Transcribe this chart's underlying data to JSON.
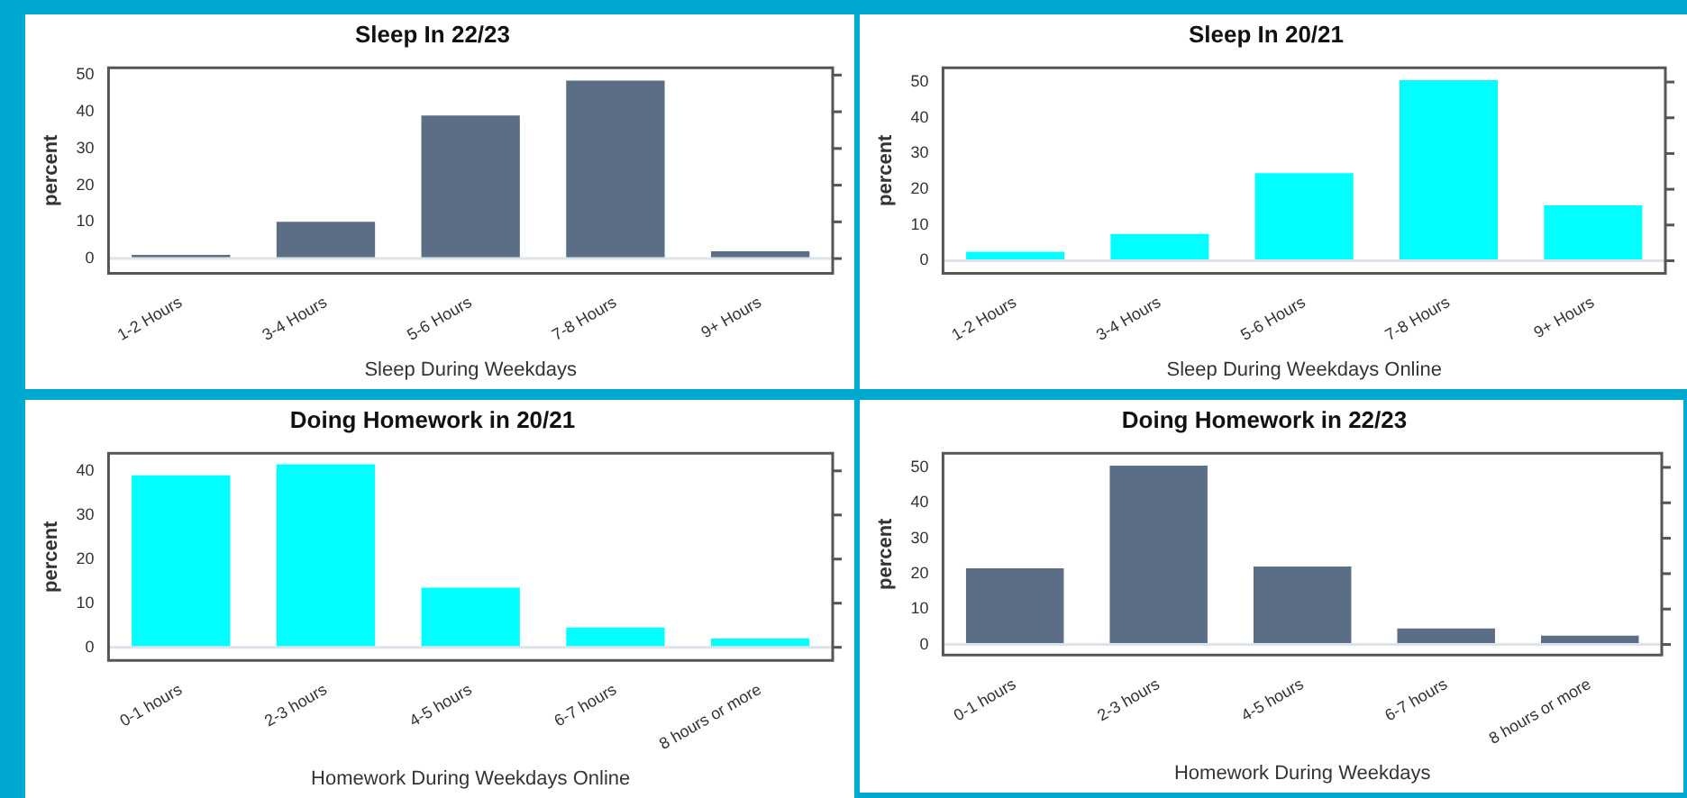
{
  "chart_data": [
    {
      "type": "bar",
      "title": "Sleep In 22/23",
      "xlabel": "Sleep During Weekdays",
      "ylabel": "percent",
      "categories": [
        "1-2 Hours",
        "3-4 Hours",
        "5-6 Hours",
        "7-8 Hours",
        "9+ Hours"
      ],
      "values": [
        1,
        10,
        39,
        48.5,
        2
      ],
      "color": "#5b6e86",
      "ylim": [
        -4,
        52
      ],
      "yticks": [
        0,
        10,
        20,
        30,
        40,
        50
      ],
      "ref_lines": [
        {
          "axis": "y",
          "value": 0,
          "color": "#dde3ea"
        }
      ]
    },
    {
      "type": "bar",
      "title": "Sleep In 20/21",
      "xlabel": "Sleep During Weekdays Online",
      "ylabel": "percent",
      "categories": [
        "1-2 Hours",
        "3-4 Hours",
        "5-6 Hours",
        "7-8 Hours",
        "9+ Hours"
      ],
      "values": [
        2.5,
        7.5,
        24.5,
        50.5,
        15.5
      ],
      "color": "#00ffff",
      "ylim": [
        -3.5,
        54
      ],
      "yticks": [
        0,
        10,
        20,
        30,
        40,
        50
      ],
      "ref_lines": [
        {
          "axis": "y",
          "value": 0,
          "color": "#dde3ea"
        }
      ]
    },
    {
      "type": "bar",
      "title": "Doing Homework in 20/21",
      "xlabel": "Homework During Weekdays Online",
      "ylabel": "percent",
      "categories": [
        "0-1 hours",
        "2-3 hours",
        "4-5 hours",
        "6-7 hours",
        "8 hours or more"
      ],
      "values": [
        39,
        41.5,
        13.5,
        4.5,
        2
      ],
      "color": "#00ffff",
      "ylim": [
        -3,
        44
      ],
      "yticks": [
        0,
        10,
        20,
        30,
        40
      ],
      "ref_lines": [
        {
          "axis": "y",
          "value": 0,
          "color": "#dde3ea"
        }
      ]
    },
    {
      "type": "bar",
      "title": "Doing Homework in 22/23",
      "xlabel": "Homework During Weekdays",
      "ylabel": "percent",
      "categories": [
        "0-1 hours",
        "2-3 hours",
        "4-5 hours",
        "6-7 hours",
        "8 hours or more"
      ],
      "values": [
        21.5,
        50.5,
        22,
        4.5,
        2.5
      ],
      "color": "#5b6e86",
      "ylim": [
        -3,
        54
      ],
      "yticks": [
        0,
        10,
        20,
        30,
        40,
        50
      ],
      "ref_lines": [
        {
          "axis": "y",
          "value": 0,
          "color": "#dde3ea"
        }
      ]
    }
  ]
}
